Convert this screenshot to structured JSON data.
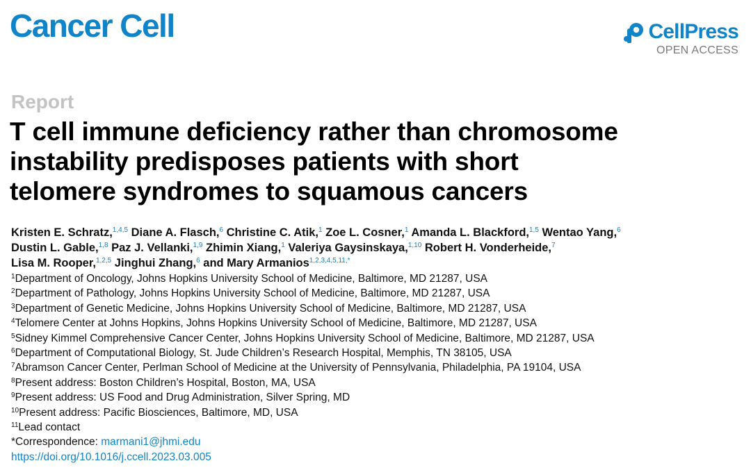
{
  "header": {
    "journal": "Cancer Cell",
    "publisher": "CellPress",
    "access": "OPEN ACCESS",
    "brand_color": "#0f84c9",
    "publisher_icon": "cellpress-logo-icon"
  },
  "article": {
    "type": "Report",
    "title_lines": [
      "T cell immune deficiency rather than chromosome",
      "instability predisposes patients with short",
      "telomere syndromes to squamous cancers"
    ]
  },
  "authors": [
    [
      {
        "name": "Kristen E. Schratz,",
        "sup": "1,4,5"
      },
      {
        "name": "Diane A. Flasch,",
        "sup": "6"
      },
      {
        "name": "Christine C. Atik,",
        "sup": "1"
      },
      {
        "name": "Zoe L. Cosner,",
        "sup": "1"
      },
      {
        "name": "Amanda L. Blackford,",
        "sup": "1,5"
      },
      {
        "name": "Wentao Yang,",
        "sup": "6"
      }
    ],
    [
      {
        "name": "Dustin L. Gable,",
        "sup": "1,8"
      },
      {
        "name": "Paz J. Vellanki,",
        "sup": "1,9"
      },
      {
        "name": "Zhimin Xiang,",
        "sup": "1"
      },
      {
        "name": "Valeriya Gaysinskaya,",
        "sup": "1,10"
      },
      {
        "name": "Robert H. Vonderheide,",
        "sup": "7"
      }
    ],
    [
      {
        "name": "Lisa M. Rooper,",
        "sup": "1,2,5"
      },
      {
        "name": "Jinghui Zhang,",
        "sup": "6"
      },
      {
        "name": "and Mary Armanios",
        "sup": "1,2,3,4,5,11,*"
      }
    ]
  ],
  "affiliations": [
    {
      "num": "1",
      "text": "Department of Oncology, Johns Hopkins University School of Medicine, Baltimore, MD 21287, USA"
    },
    {
      "num": "2",
      "text": "Department of Pathology, Johns Hopkins University School of Medicine, Baltimore, MD 21287, USA"
    },
    {
      "num": "3",
      "text": "Department of Genetic Medicine, Johns Hopkins University School of Medicine, Baltimore, MD 21287, USA"
    },
    {
      "num": "4",
      "text": "Telomere Center at Johns Hopkins, Johns Hopkins University School of Medicine, Baltimore, MD 21287, USA"
    },
    {
      "num": "5",
      "text": "Sidney Kimmel Comprehensive Cancer Center, Johns Hopkins University School of Medicine, Baltimore, MD 21287, USA"
    },
    {
      "num": "6",
      "text": "Department of Computational Biology, St. Jude Children’s Research Hospital, Memphis, TN 38105, USA"
    },
    {
      "num": "7",
      "text": "Abramson Cancer Center, Perlman School of Medicine at the University of Pennsylvania, Philadelphia, PA 19104, USA"
    },
    {
      "num": "8",
      "text": "Present address: Boston Children’s Hospital, Boston, MA, USA"
    },
    {
      "num": "9",
      "text": "Present address: US Food and Drug Administration, Silver Spring, MD"
    },
    {
      "num": "10",
      "text": "Present address: Pacific Biosciences, Baltimore, MD, USA"
    },
    {
      "num": "11",
      "text": "Lead contact"
    }
  ],
  "correspondence": {
    "label": "*Correspondence: ",
    "email": "marmani1@jhmi.edu"
  },
  "doi": "https://doi.org/10.1016/j.ccell.2023.03.005"
}
